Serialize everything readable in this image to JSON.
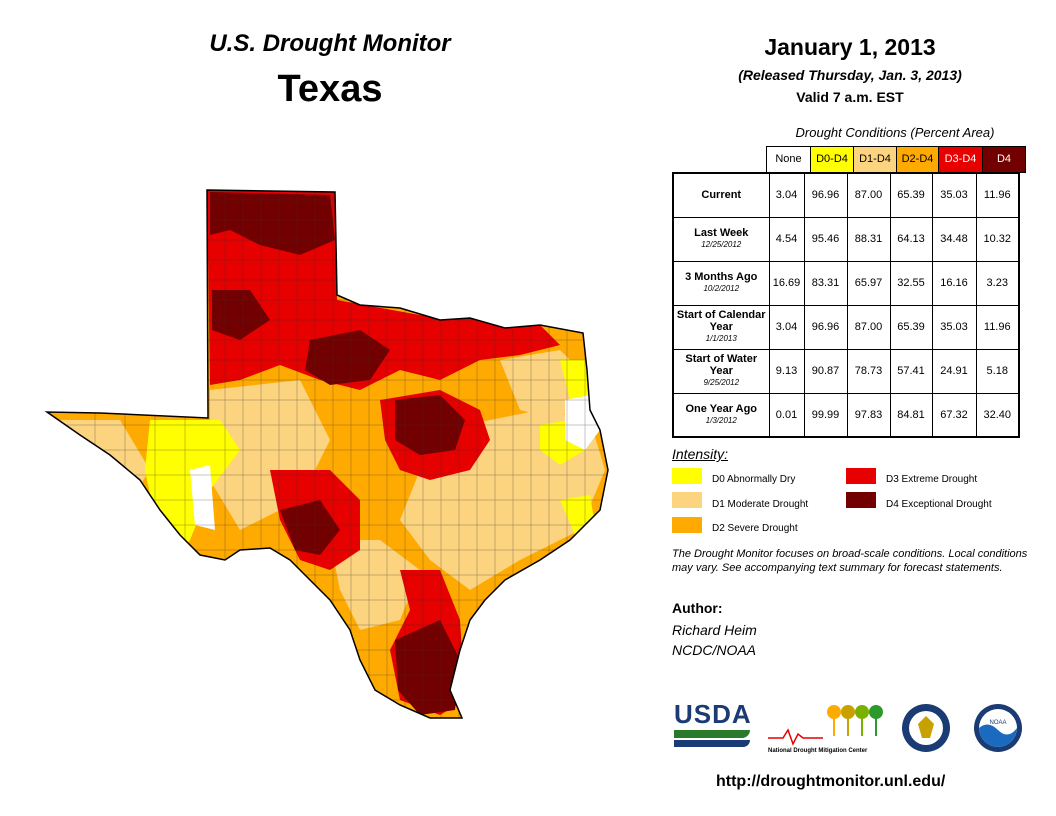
{
  "header": {
    "title": "U.S. Drought Monitor",
    "state": "Texas",
    "date": "January 1, 2013",
    "released": "(Released Thursday, Jan. 3, 2013)",
    "valid": "Valid 7 a.m. EST"
  },
  "table": {
    "caption": "Drought Conditions (Percent Area)",
    "columns": [
      "None",
      "D0-D4",
      "D1-D4",
      "D2-D4",
      "D3-D4",
      "D4"
    ],
    "rows": [
      {
        "label": "Current",
        "sub": "",
        "values": [
          "3.04",
          "96.96",
          "87.00",
          "65.39",
          "35.03",
          "11.96"
        ]
      },
      {
        "label": "Last Week",
        "sub": "12/25/2012",
        "values": [
          "4.54",
          "95.46",
          "88.31",
          "64.13",
          "34.48",
          "10.32"
        ]
      },
      {
        "label": "3 Months Ago",
        "sub": "10/2/2012",
        "values": [
          "16.69",
          "83.31",
          "65.97",
          "32.55",
          "16.16",
          "3.23"
        ]
      },
      {
        "label": "Start of Calendar Year",
        "sub": "1/1/2013",
        "values": [
          "3.04",
          "96.96",
          "87.00",
          "65.39",
          "35.03",
          "11.96"
        ]
      },
      {
        "label": "Start of Water Year",
        "sub": "9/25/2012",
        "values": [
          "9.13",
          "90.87",
          "78.73",
          "57.41",
          "24.91",
          "5.18"
        ]
      },
      {
        "label": "One Year Ago",
        "sub": "1/3/2012",
        "values": [
          "0.01",
          "99.99",
          "97.83",
          "84.81",
          "67.32",
          "32.40"
        ]
      }
    ]
  },
  "legend": {
    "title": "Intensity:",
    "items": [
      {
        "label": "D0 Abnormally Dry",
        "color": "#ffff00"
      },
      {
        "label": "D1 Moderate Drought",
        "color": "#fcd37f"
      },
      {
        "label": "D2 Severe Drought",
        "color": "#ffaa00"
      },
      {
        "label": "D3 Extreme Drought",
        "color": "#e60000"
      },
      {
        "label": "D4 Exceptional Drought",
        "color": "#730000"
      }
    ]
  },
  "note": "The Drought Monitor focuses on broad-scale conditions. Local conditions may vary. See accompanying text summary for forecast statements.",
  "author": {
    "heading": "Author:",
    "name": "Richard Heim",
    "org": "NCDC/NOAA"
  },
  "logos": {
    "usda": "USDA",
    "ndmc": "National Drought Mitigation Center",
    "noaa": "NOAA"
  },
  "url": "http://droughtmonitor.unl.edu/"
}
